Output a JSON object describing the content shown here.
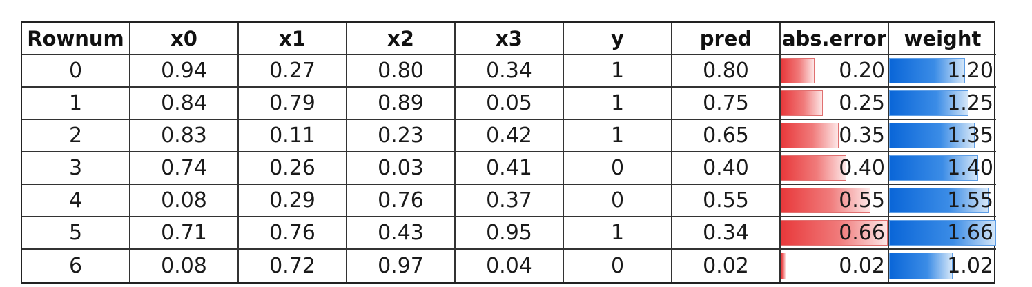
{
  "chart_data": {
    "type": "table",
    "columns": [
      "Rownum",
      "x0",
      "x1",
      "x2",
      "x3",
      "y",
      "pred",
      "abs.error",
      "weight"
    ],
    "rows": [
      [
        "0",
        "0.94",
        "0.27",
        "0.80",
        "0.34",
        "1",
        "0.80",
        "0.20",
        "1.20"
      ],
      [
        "1",
        "0.84",
        "0.79",
        "0.89",
        "0.05",
        "1",
        "0.75",
        "0.25",
        "1.25"
      ],
      [
        "2",
        "0.83",
        "0.11",
        "0.23",
        "0.42",
        "1",
        "0.65",
        "0.35",
        "1.35"
      ],
      [
        "3",
        "0.74",
        "0.26",
        "0.03",
        "0.41",
        "0",
        "0.40",
        "0.40",
        "1.40"
      ],
      [
        "4",
        "0.08",
        "0.29",
        "0.76",
        "0.37",
        "0",
        "0.55",
        "0.55",
        "1.55"
      ],
      [
        "5",
        "0.71",
        "0.76",
        "0.43",
        "0.95",
        "1",
        "0.34",
        "0.66",
        "1.66"
      ],
      [
        "6",
        "0.08",
        "0.72",
        "0.97",
        "0.04",
        "0",
        "0.02",
        "0.02",
        "1.02"
      ]
    ],
    "bar_columns": {
      "abs.error": {
        "color": "#e8393b",
        "range": [
          0,
          0.66
        ]
      },
      "weight": {
        "color": "#0a66d8",
        "range": [
          1,
          1.66
        ]
      }
    }
  }
}
